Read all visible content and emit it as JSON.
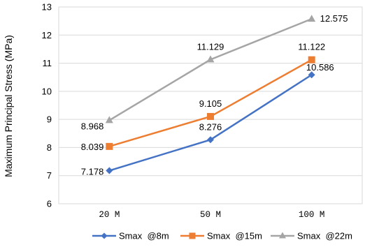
{
  "chart_data": {
    "type": "line",
    "categories": [
      "20 M",
      "50 M",
      "100 M"
    ],
    "ylabel": "Maximum Principal Stress (MPa)",
    "ylim": [
      6,
      13
    ],
    "yticks": [
      6,
      7,
      8,
      9,
      10,
      11,
      12,
      13
    ],
    "grid": "horizontal",
    "legend_position": "bottom",
    "series": [
      {
        "name": "Smax  @8m",
        "color": "#4472C4",
        "marker": "diamond",
        "values": [
          7.178,
          8.276,
          10.586
        ],
        "labels": [
          "7.178",
          "8.276",
          "10.586"
        ]
      },
      {
        "name": "Smax  @15m",
        "color": "#ED7D31",
        "marker": "square",
        "values": [
          8.039,
          9.105,
          11.122
        ],
        "labels": [
          "8.039",
          "9.105",
          "11.122"
        ]
      },
      {
        "name": "Smax  @22m",
        "color": "#A5A5A5",
        "marker": "triangle",
        "values": [
          8.968,
          11.129,
          12.575
        ],
        "labels": [
          "8.968",
          "11.129",
          "12.575"
        ]
      }
    ]
  }
}
